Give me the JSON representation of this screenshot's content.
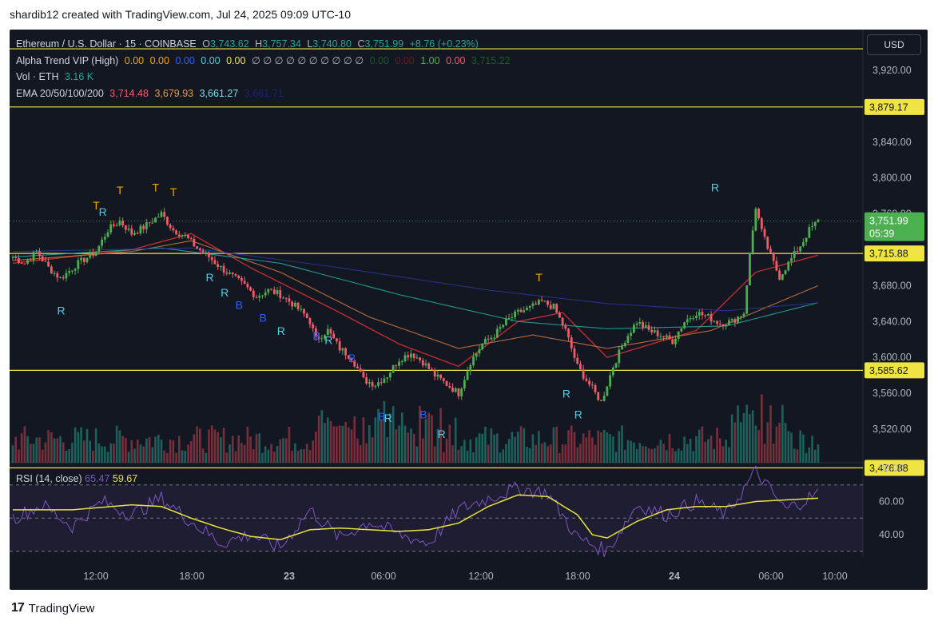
{
  "header": {
    "caption": "shardib12 created with TradingView.com, Jul 24, 2025 09:09 UTC-10"
  },
  "legend": {
    "symbol": "Ethereum / U.S. Dollar · 15 · COINBASE",
    "open_label": "O",
    "open": "3,743.62",
    "high_label": "H",
    "high": "3,757.34",
    "low_label": "L",
    "low": "3,740.80",
    "close_label": "C",
    "close": "3,751.99",
    "change": "+8.76 (+0.23%)",
    "alpha_name": "Alpha Trend VIP (High)",
    "alpha_values": [
      "0.00",
      "0.00",
      "0.00",
      "0.00",
      "0.00",
      "∅ ∅ ∅ ∅ ∅ ∅ ∅ ∅ ∅ ∅",
      "0.00",
      "0.00",
      "1.00",
      "0.00",
      "3,715.22"
    ],
    "vol_name": "Vol · ETH",
    "vol_value": "3.16 K",
    "ema_name": "EMA 20/50/100/200",
    "ema_values": [
      "3,714.48",
      "3,679.93",
      "3,661.27",
      "3,661.71"
    ]
  },
  "currency_button": "USD",
  "rsi_legend": {
    "name": "RSI (14, close)",
    "value1": "65.47",
    "value2": "59.67"
  },
  "footer": {
    "logo": "17",
    "brand": "TradingView"
  },
  "colors": {
    "bull": "#4caf50",
    "bear": "#f05c6a",
    "ema20": "#d32f2f",
    "ema50": "#c8763c",
    "ema100": "#26a69a",
    "ema200": "#283593",
    "rsi": "#7e57c2",
    "rsi_ma": "#e8e33c",
    "hline": "#f0e442",
    "price_tag": "#4caf50"
  },
  "chart_data": [
    {
      "type": "candlestick",
      "title": "Ethereum / U.S. Dollar · 15 · COINBASE",
      "ylim": [
        3476.88,
        3945
      ],
      "y_ticks": [
        3920,
        3880,
        3840,
        3800,
        3760,
        3720,
        3680,
        3640,
        3600,
        3560,
        3520
      ],
      "y_tick_labels": [
        "3,920.00",
        "3,840.00",
        "3,800.00",
        "3,760.00",
        "3,680.00",
        "3,640.00",
        "3,600.00",
        "3,560.00",
        "3,520.00"
      ],
      "x_tick_labels": [
        "12:00",
        "18:00",
        "23",
        "06:00",
        "12:00",
        "18:00",
        "24",
        "06:00",
        "10:00"
      ],
      "horizontal_levels": [
        {
          "value": 3944,
          "label": ""
        },
        {
          "value": 3879.17,
          "label": "3,879.17"
        },
        {
          "value": 3715.88,
          "label": "3,715.88"
        },
        {
          "value": 3585.62,
          "label": "3,585.62"
        },
        {
          "value": 3476.88,
          "label": "3,476.88"
        }
      ],
      "last_price": {
        "value": 3751.99,
        "label": "3,751.99",
        "countdown": "05:39"
      },
      "price_path": [
        [
          0,
          3712
        ],
        [
          4,
          3705
        ],
        [
          8,
          3718
        ],
        [
          12,
          3700
        ],
        [
          16,
          3688
        ],
        [
          22,
          3705
        ],
        [
          28,
          3718
        ],
        [
          32,
          3742
        ],
        [
          36,
          3752
        ],
        [
          40,
          3738
        ],
        [
          44,
          3745
        ],
        [
          48,
          3755
        ],
        [
          50,
          3760
        ],
        [
          54,
          3742
        ],
        [
          58,
          3735
        ],
        [
          62,
          3722
        ],
        [
          66,
          3712
        ],
        [
          70,
          3700
        ],
        [
          74,
          3690
        ],
        [
          78,
          3680
        ],
        [
          82,
          3668
        ],
        [
          86,
          3675
        ],
        [
          90,
          3670
        ],
        [
          94,
          3660
        ],
        [
          98,
          3648
        ],
        [
          100,
          3640
        ],
        [
          102,
          3620
        ],
        [
          106,
          3630
        ],
        [
          110,
          3610
        ],
        [
          114,
          3600
        ],
        [
          118,
          3575
        ],
        [
          122,
          3570
        ],
        [
          126,
          3580
        ],
        [
          130,
          3598
        ],
        [
          134,
          3605
        ],
        [
          138,
          3595
        ],
        [
          142,
          3580
        ],
        [
          146,
          3570
        ],
        [
          150,
          3560
        ],
        [
          154,
          3595
        ],
        [
          158,
          3615
        ],
        [
          162,
          3625
        ],
        [
          166,
          3640
        ],
        [
          170,
          3650
        ],
        [
          174,
          3655
        ],
        [
          178,
          3662
        ],
        [
          182,
          3656
        ],
        [
          186,
          3630
        ],
        [
          190,
          3590
        ],
        [
          194,
          3570
        ],
        [
          198,
          3550
        ],
        [
          202,
          3590
        ],
        [
          206,
          3620
        ],
        [
          210,
          3640
        ],
        [
          214,
          3630
        ],
        [
          218,
          3625
        ],
        [
          222,
          3618
        ],
        [
          226,
          3640
        ],
        [
          230,
          3650
        ],
        [
          234,
          3645
        ],
        [
          238,
          3638
        ],
        [
          242,
          3640
        ],
        [
          246,
          3650
        ],
        [
          248,
          3715
        ],
        [
          250,
          3768
        ],
        [
          252,
          3740
        ],
        [
          254,
          3722
        ],
        [
          256,
          3705
        ],
        [
          258,
          3690
        ],
        [
          260,
          3700
        ],
        [
          263,
          3715
        ],
        [
          266,
          3730
        ],
        [
          268,
          3742
        ],
        [
          271,
          3752
        ]
      ],
      "ema_series": [
        {
          "name": "EMA 20",
          "values": [
            [
              0,
              3705
            ],
            [
              40,
              3720
            ],
            [
              60,
              3738
            ],
            [
              80,
              3700
            ],
            [
              110,
              3650
            ],
            [
              130,
              3615
            ],
            [
              150,
              3590
            ],
            [
              170,
              3640
            ],
            [
              185,
              3650
            ],
            [
              200,
              3600
            ],
            [
              230,
              3630
            ],
            [
              250,
              3695
            ],
            [
              271,
              3714
            ]
          ]
        },
        {
          "name": "EMA 50",
          "values": [
            [
              0,
              3708
            ],
            [
              40,
              3718
            ],
            [
              60,
              3730
            ],
            [
              90,
              3695
            ],
            [
              120,
              3645
            ],
            [
              150,
              3610
            ],
            [
              175,
              3625
            ],
            [
              200,
              3610
            ],
            [
              235,
              3630
            ],
            [
              271,
              3680
            ]
          ]
        },
        {
          "name": "EMA 100",
          "values": [
            [
              0,
              3712
            ],
            [
              50,
              3722
            ],
            [
              90,
              3705
            ],
            [
              130,
              3670
            ],
            [
              170,
              3640
            ],
            [
              200,
              3632
            ],
            [
              240,
              3635
            ],
            [
              271,
              3661
            ]
          ]
        },
        {
          "name": "EMA 200",
          "values": [
            [
              0,
              3718
            ],
            [
              60,
              3722
            ],
            [
              110,
              3700
            ],
            [
              160,
              3675
            ],
            [
              200,
              3660
            ],
            [
              240,
              3652
            ],
            [
              271,
              3661
            ]
          ]
        }
      ],
      "signals": [
        {
          "i": 16,
          "label": "R",
          "price": 3648
        },
        {
          "i": 28,
          "label": "T",
          "price": 3765
        },
        {
          "i": 30,
          "label": "R",
          "price": 3758
        },
        {
          "i": 36,
          "label": "T",
          "price": 3782
        },
        {
          "i": 48,
          "label": "T",
          "price": 3785
        },
        {
          "i": 54,
          "label": "T",
          "price": 3780
        },
        {
          "i": 66,
          "label": "R",
          "price": 3685
        },
        {
          "i": 71,
          "label": "R",
          "price": 3668
        },
        {
          "i": 76,
          "label": "B",
          "price": 3654
        },
        {
          "i": 84,
          "label": "B",
          "price": 3640
        },
        {
          "i": 90,
          "label": "R",
          "price": 3625
        },
        {
          "i": 102,
          "label": "B",
          "price": 3620
        },
        {
          "i": 106,
          "label": "R",
          "price": 3615
        },
        {
          "i": 114,
          "label": "B",
          "price": 3595
        },
        {
          "i": 124,
          "label": "B",
          "price": 3530
        },
        {
          "i": 126,
          "label": "R",
          "price": 3528
        },
        {
          "i": 138,
          "label": "B",
          "price": 3532
        },
        {
          "i": 144,
          "label": "R",
          "price": 3510
        },
        {
          "i": 177,
          "label": "T",
          "price": 3685
        },
        {
          "i": 186,
          "label": "R",
          "price": 3555
        },
        {
          "i": 190,
          "label": "R",
          "price": 3532
        },
        {
          "i": 236,
          "label": "R",
          "price": 3785
        }
      ]
    },
    {
      "type": "line",
      "title": "RSI (14, close)",
      "ylim": [
        25,
        85
      ],
      "y_ticks": [
        80,
        60,
        40
      ],
      "y_tick_labels": [
        "80.00",
        "60.00",
        "40.00"
      ],
      "bands": [
        70,
        50,
        30
      ],
      "series": [
        {
          "name": "RSI",
          "values": [
            [
              0,
              50
            ],
            [
              10,
              58
            ],
            [
              20,
              45
            ],
            [
              30,
              60
            ],
            [
              40,
              52
            ],
            [
              50,
              62
            ],
            [
              60,
              48
            ],
            [
              70,
              35
            ],
            [
              80,
              40
            ],
            [
              90,
              32
            ],
            [
              100,
              55
            ],
            [
              110,
              38
            ],
            [
              120,
              48
            ],
            [
              130,
              40
            ],
            [
              140,
              35
            ],
            [
              150,
              55
            ],
            [
              160,
              62
            ],
            [
              170,
              68
            ],
            [
              180,
              65
            ],
            [
              190,
              38
            ],
            [
              200,
              30
            ],
            [
              210,
              58
            ],
            [
              220,
              52
            ],
            [
              230,
              60
            ],
            [
              240,
              52
            ],
            [
              250,
              78
            ],
            [
              260,
              55
            ],
            [
              271,
              65
            ]
          ]
        },
        {
          "name": "RSI MA",
          "values": [
            [
              0,
              55
            ],
            [
              20,
              55
            ],
            [
              40,
              58
            ],
            [
              50,
              57
            ],
            [
              60,
              50
            ],
            [
              70,
              44
            ],
            [
              80,
              39
            ],
            [
              90,
              37
            ],
            [
              100,
              43
            ],
            [
              110,
              44
            ],
            [
              120,
              43
            ],
            [
              130,
              42
            ],
            [
              140,
              43
            ],
            [
              150,
              47
            ],
            [
              160,
              57
            ],
            [
              170,
              64
            ],
            [
              180,
              63
            ],
            [
              190,
              52
            ],
            [
              195,
              40
            ],
            [
              200,
              38
            ],
            [
              210,
              48
            ],
            [
              220,
              55
            ],
            [
              230,
              57
            ],
            [
              240,
              57
            ],
            [
              250,
              60
            ],
            [
              271,
              62
            ]
          ]
        }
      ]
    }
  ]
}
